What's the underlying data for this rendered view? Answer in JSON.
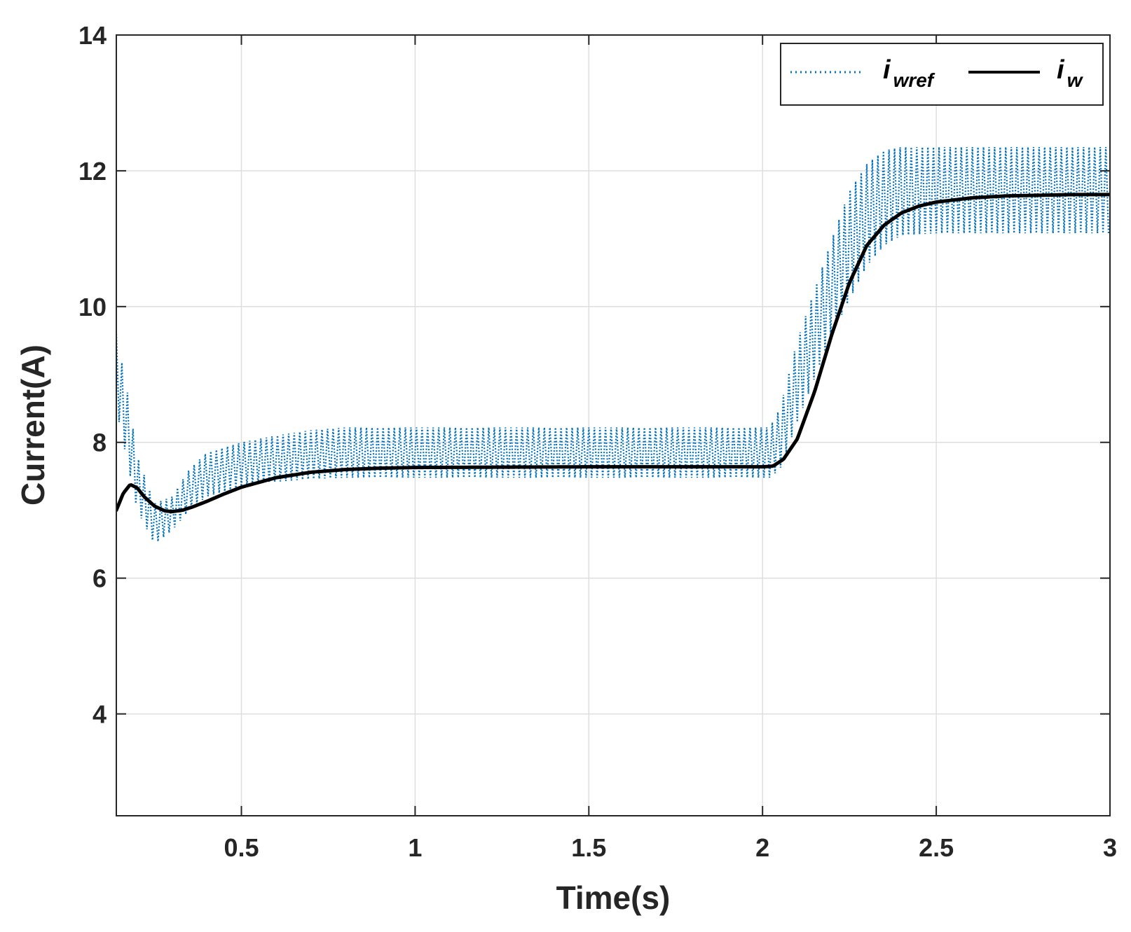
{
  "chart_data": {
    "type": "line",
    "xlabel": "Time(s)",
    "ylabel": "Current(A)",
    "xlim": [
      0.14,
      3
    ],
    "ylim": [
      2.5,
      14
    ],
    "xticks": [
      0.5,
      1,
      1.5,
      2,
      2.5,
      3
    ],
    "xtick_labels": [
      "0.5",
      "1",
      "1.5",
      "2",
      "2.5",
      "3"
    ],
    "yticks": [
      4,
      6,
      8,
      10,
      12,
      14
    ],
    "ytick_labels": [
      "4",
      "6",
      "8",
      "10",
      "12",
      "14"
    ],
    "grid": true,
    "legend_position": "top-right",
    "legend_orientation": "horizontal",
    "series": [
      {
        "name": "wref",
        "legend_main": "i",
        "legend_sub": "wref",
        "color": "#0072BD",
        "style": "dotted",
        "oscillation_period": 0.016,
        "band_lower": {
          "x": [
            0.14,
            0.2,
            0.25,
            0.3,
            0.35,
            0.4,
            0.5,
            0.6,
            0.7,
            0.8,
            1.0,
            1.5,
            2.02,
            2.05,
            2.1,
            2.2,
            2.3,
            2.35,
            2.4,
            2.5,
            3.0
          ],
          "y": [
            8.5,
            7.0,
            6.5,
            6.7,
            7.0,
            7.2,
            7.35,
            7.42,
            7.46,
            7.48,
            7.48,
            7.48,
            7.48,
            7.6,
            8.3,
            9.6,
            10.6,
            10.9,
            11.05,
            11.08,
            11.08
          ]
        },
        "band_upper": {
          "x": [
            0.14,
            0.17,
            0.2,
            0.25,
            0.3,
            0.35,
            0.4,
            0.5,
            0.6,
            0.7,
            0.8,
            1.0,
            1.5,
            2.02,
            2.05,
            2.1,
            2.2,
            2.25,
            2.3,
            2.35,
            2.4,
            2.5,
            3.0
          ],
          "y": [
            9.6,
            8.8,
            7.8,
            7.1,
            7.2,
            7.6,
            7.85,
            8.0,
            8.1,
            8.18,
            8.22,
            8.22,
            8.22,
            8.22,
            8.5,
            9.5,
            11.0,
            11.7,
            12.1,
            12.3,
            12.35,
            12.35,
            12.35
          ]
        }
      },
      {
        "name": "w",
        "legend_main": "i",
        "legend_sub": "w",
        "color": "#000000",
        "style": "solid",
        "x": [
          0.14,
          0.16,
          0.18,
          0.2,
          0.22,
          0.25,
          0.28,
          0.3,
          0.33,
          0.36,
          0.4,
          0.45,
          0.5,
          0.6,
          0.7,
          0.8,
          0.9,
          1.0,
          1.5,
          2.0,
          2.03,
          2.06,
          2.1,
          2.15,
          2.2,
          2.25,
          2.3,
          2.35,
          2.4,
          2.45,
          2.5,
          2.6,
          2.7,
          2.8,
          2.9,
          3.0
        ],
        "y": [
          7.0,
          7.25,
          7.38,
          7.33,
          7.2,
          7.06,
          6.99,
          6.98,
          7.0,
          7.05,
          7.13,
          7.24,
          7.34,
          7.48,
          7.56,
          7.6,
          7.62,
          7.63,
          7.64,
          7.64,
          7.65,
          7.75,
          8.05,
          8.75,
          9.6,
          10.35,
          10.9,
          11.2,
          11.38,
          11.48,
          11.54,
          11.6,
          11.63,
          11.64,
          11.65,
          11.65
        ]
      }
    ]
  }
}
